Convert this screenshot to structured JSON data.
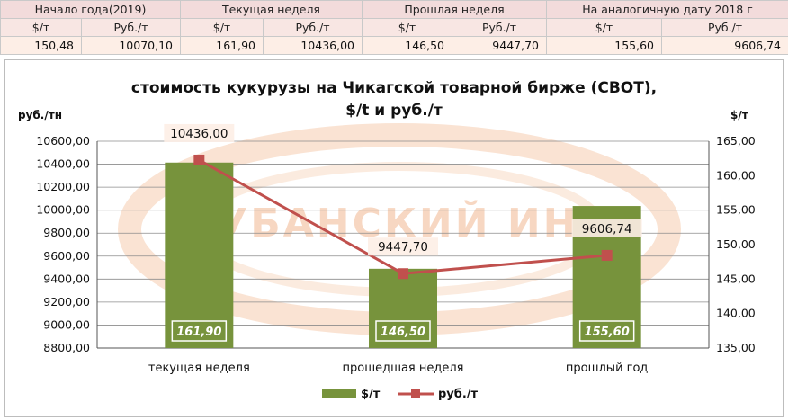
{
  "summary": {
    "headers": [
      "Начало года(2019)",
      "Текущая неделя",
      "Прошлая неделя",
      "На аналогичную дату 2018 г"
    ],
    "units": [
      "$/т",
      "Руб./т",
      "$/т",
      "Руб./т",
      "$/т",
      "Руб./т",
      "$/т",
      "Руб./т"
    ],
    "values": [
      "150,48",
      "10070,10",
      "161,90",
      "10436,00",
      "146,50",
      "9447,70",
      "155,60",
      "9606,74"
    ]
  },
  "chart_data": {
    "type": "bar",
    "title_line1": "стоимость кукурузы на Чикагской товарной бирже (CBOT),",
    "title_line2": "$/t и руб./т",
    "ylabel_left": "руб./тн",
    "ylabel_right": "$/т",
    "categories": [
      "текущая неделя",
      "прошедшая неделя",
      "прошлый год"
    ],
    "series": [
      {
        "name": "$/т",
        "type": "bar",
        "axis": "right",
        "color": "#77933c",
        "values": [
          161.9,
          146.5,
          155.6
        ],
        "labels": [
          "161,90",
          "146,50",
          "155,60"
        ]
      },
      {
        "name": "руб./т",
        "type": "line",
        "axis": "left",
        "color": "#c0504d",
        "values": [
          10436.0,
          9447.7,
          9606.74
        ],
        "labels": [
          "10436,00",
          "9447,70",
          "9606,74"
        ]
      }
    ],
    "left_axis": {
      "min": 8800,
      "max": 10600,
      "step": 200,
      "ticks": [
        "8800,00",
        "9000,00",
        "9200,00",
        "9400,00",
        "9600,00",
        "9800,00",
        "10000,00",
        "10200,00",
        "10400,00",
        "10600,00"
      ]
    },
    "right_axis": {
      "min": 135,
      "max": 165,
      "step": 5,
      "ticks": [
        "135,00",
        "140,00",
        "145,00",
        "150,00",
        "155,00",
        "160,00",
        "165,00"
      ]
    },
    "watermark": "КУБАНСКИЙ ИНД",
    "grid": true,
    "legend_position": "bottom"
  }
}
